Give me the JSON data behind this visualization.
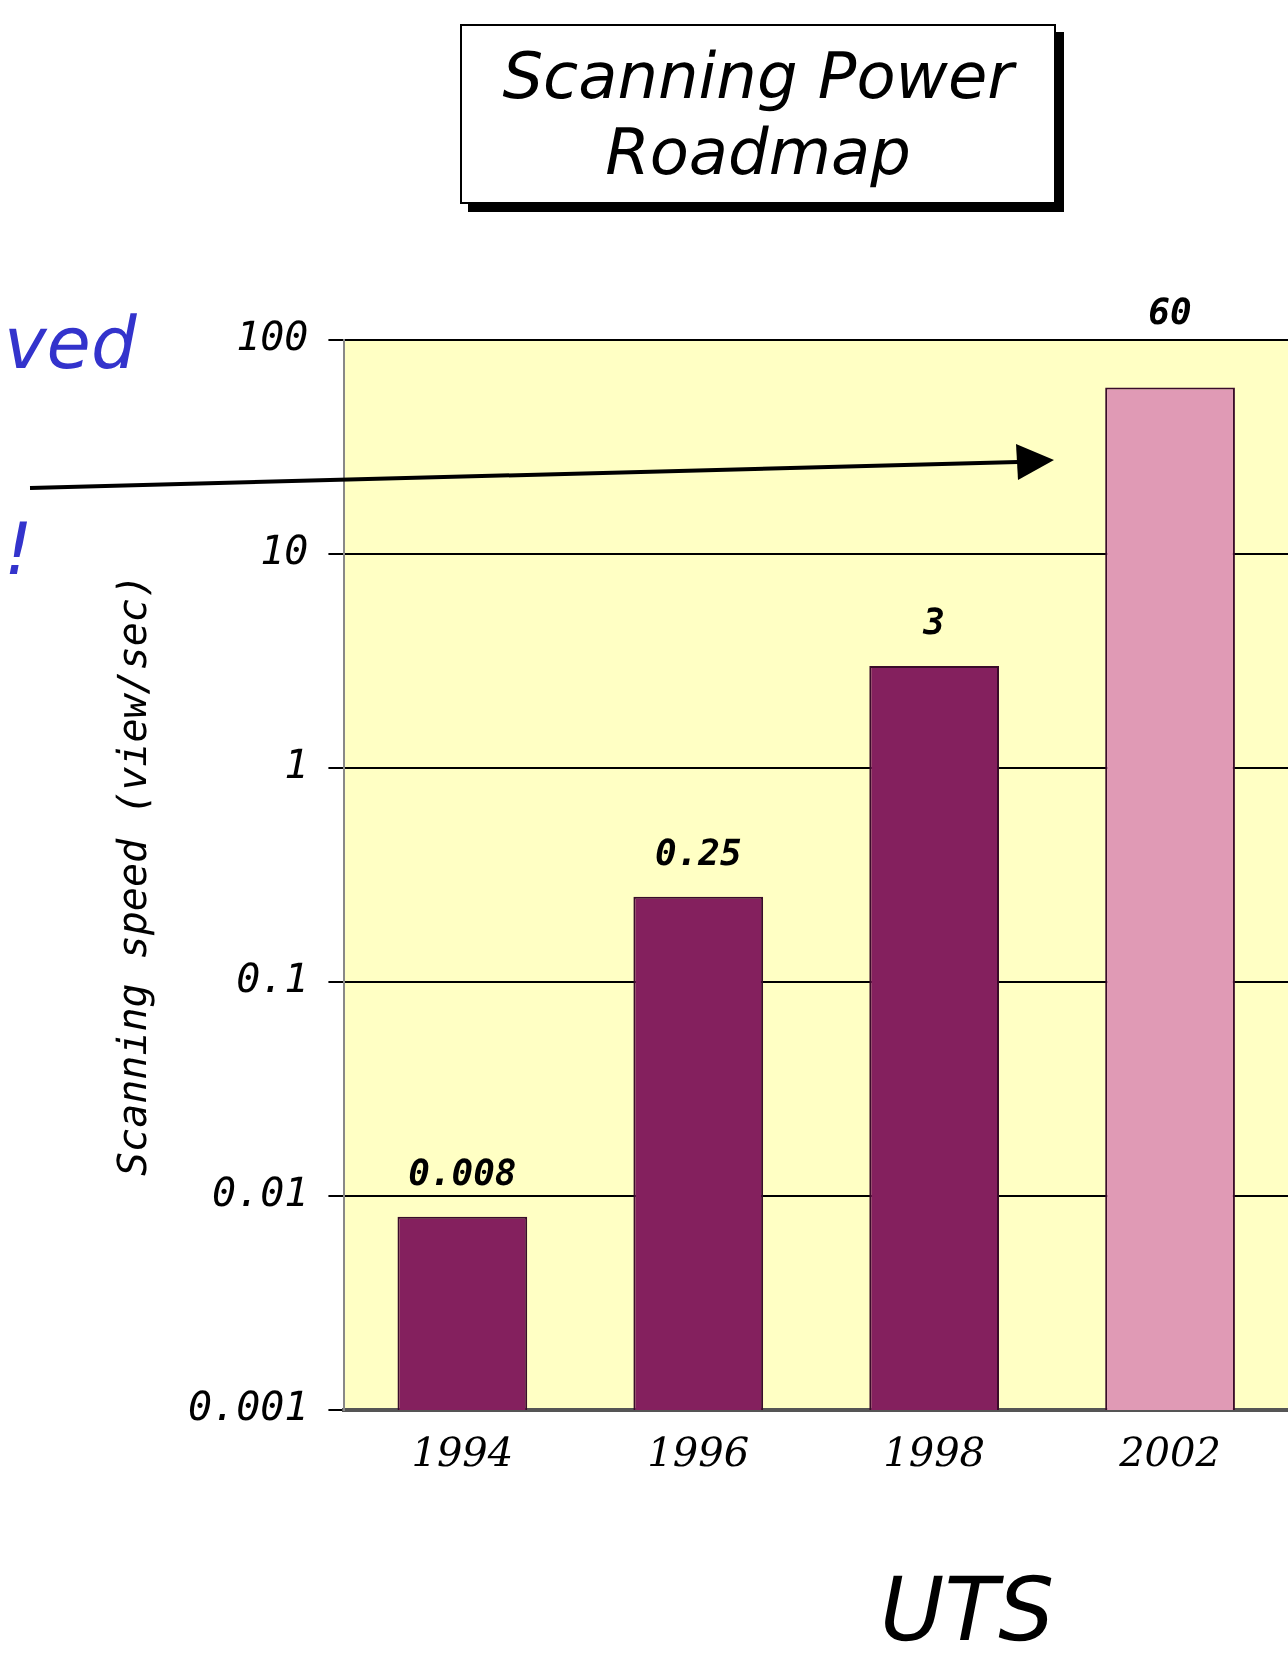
{
  "chart_data": {
    "type": "bar",
    "title": "Scanning Power\nRoadmap",
    "ylabel": "Scanning speed (view/sec)",
    "categories": [
      "1994",
      "1996",
      "1998",
      "2002"
    ],
    "values": [
      0.008,
      0.25,
      3,
      60
    ],
    "colors": [
      "#84205e",
      "#84205e",
      "#84205e",
      "#e09ab5"
    ],
    "log": "y",
    "ylim": [
      0.001,
      100
    ],
    "yticks": [
      {
        "value": 0.001,
        "label": "0.001"
      },
      {
        "value": 0.01,
        "label": "0.01"
      },
      {
        "value": 0.1,
        "label": "0.1"
      },
      {
        "value": 1,
        "label": "1"
      },
      {
        "value": 10,
        "label": "10"
      },
      {
        "value": 100,
        "label": "100"
      }
    ],
    "grid": "y",
    "legend": false,
    "data_labels": true,
    "annotations": [
      "ved",
      "!",
      "UTS"
    ]
  }
}
